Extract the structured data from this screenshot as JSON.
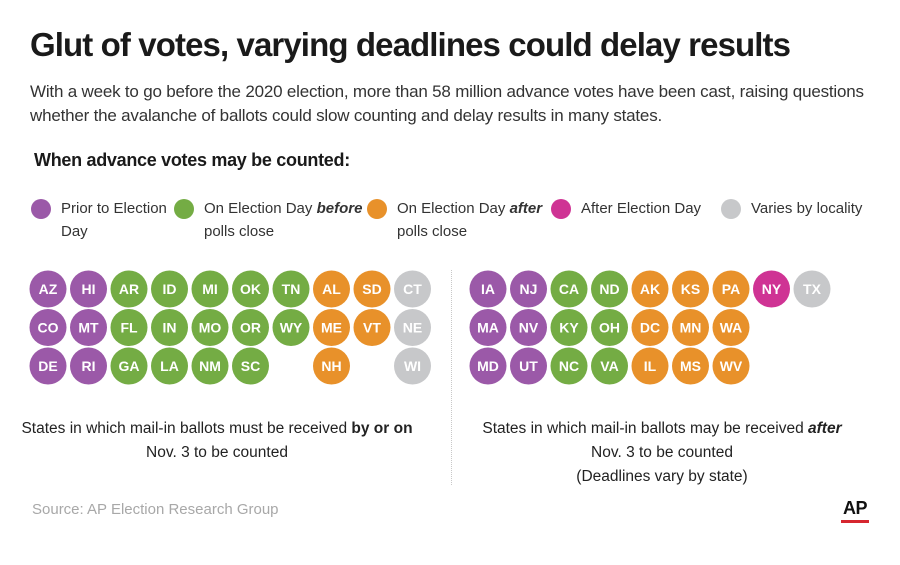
{
  "header": {
    "title": "Glut of votes, varying deadlines could delay results",
    "subtitle": "With a week to go before the 2020 election, more than 58 million advance votes have been cast, raising questions whether the avalanche of ballots could slow counting and delay results in many states.",
    "subhead": "When advance votes may be counted:"
  },
  "legend": [
    {
      "key": "prior",
      "line1": "Prior to Election",
      "line2": "Day",
      "emph": "",
      "color": "#9b59a8"
    },
    {
      "key": "before",
      "line1": "On Election Day ",
      "emph": "before",
      "line2": "polls close",
      "color": "#74ac44"
    },
    {
      "key": "after",
      "line1": "On Election Day ",
      "emph": "after",
      "line2": "polls close",
      "color": "#e8912a"
    },
    {
      "key": "post",
      "line1": "After Election Day",
      "emph": "",
      "line2": "",
      "color": "#cf3394"
    },
    {
      "key": "varies",
      "line1": "Varies by locality",
      "emph": "",
      "line2": "",
      "color": "#c7c8ca"
    }
  ],
  "chart_data": {
    "type": "table",
    "title": "When advance votes may be counted:",
    "categories": [
      "Prior to Election Day",
      "On Election Day before polls close",
      "On Election Day after polls close",
      "After Election Day",
      "Varies by locality"
    ],
    "groups": [
      {
        "name": "received_by_or_on",
        "caption_pre": "States in which mail-in ballots must be received ",
        "caption_emph": "by or on",
        "caption_line2": "Nov. 3 to be counted",
        "caption_line3": "",
        "rows": [
          [
            {
              "s": "AZ",
              "c": "prior"
            },
            {
              "s": "HI",
              "c": "prior"
            },
            {
              "s": "AR",
              "c": "before"
            },
            {
              "s": "ID",
              "c": "before"
            },
            {
              "s": "MI",
              "c": "before"
            },
            {
              "s": "OK",
              "c": "before"
            },
            {
              "s": "TN",
              "c": "before"
            },
            {
              "s": "AL",
              "c": "after"
            },
            {
              "s": "SD",
              "c": "after"
            },
            {
              "s": "CT",
              "c": "varies"
            }
          ],
          [
            {
              "s": "CO",
              "c": "prior"
            },
            {
              "s": "MT",
              "c": "prior"
            },
            {
              "s": "FL",
              "c": "before"
            },
            {
              "s": "IN",
              "c": "before"
            },
            {
              "s": "MO",
              "c": "before"
            },
            {
              "s": "OR",
              "c": "before"
            },
            {
              "s": "WY",
              "c": "before"
            },
            {
              "s": "ME",
              "c": "after"
            },
            {
              "s": "VT",
              "c": "after"
            },
            {
              "s": "NE",
              "c": "varies"
            }
          ],
          [
            {
              "s": "DE",
              "c": "prior"
            },
            {
              "s": "RI",
              "c": "prior"
            },
            {
              "s": "GA",
              "c": "before"
            },
            {
              "s": "LA",
              "c": "before"
            },
            {
              "s": "NM",
              "c": "before"
            },
            {
              "s": "SC",
              "c": "before"
            },
            null,
            {
              "s": "NH",
              "c": "after"
            },
            null,
            {
              "s": "WI",
              "c": "varies"
            }
          ]
        ]
      },
      {
        "name": "received_after",
        "caption_pre": "States in which mail-in ballots may be received ",
        "caption_emph": "after",
        "caption_line2": "Nov. 3 to be counted",
        "caption_line3": "(Deadlines vary by state)",
        "rows": [
          [
            {
              "s": "IA",
              "c": "prior"
            },
            {
              "s": "NJ",
              "c": "prior"
            },
            {
              "s": "CA",
              "c": "before"
            },
            {
              "s": "ND",
              "c": "before"
            },
            {
              "s": "AK",
              "c": "after"
            },
            {
              "s": "KS",
              "c": "after"
            },
            {
              "s": "PA",
              "c": "after"
            },
            {
              "s": "NY",
              "c": "post"
            },
            {
              "s": "TX",
              "c": "varies"
            }
          ],
          [
            {
              "s": "MA",
              "c": "prior"
            },
            {
              "s": "NV",
              "c": "prior"
            },
            {
              "s": "KY",
              "c": "before"
            },
            {
              "s": "OH",
              "c": "before"
            },
            {
              "s": "DC",
              "c": "after"
            },
            {
              "s": "MN",
              "c": "after"
            },
            {
              "s": "WA",
              "c": "after"
            }
          ],
          [
            {
              "s": "MD",
              "c": "prior"
            },
            {
              "s": "UT",
              "c": "prior"
            },
            {
              "s": "NC",
              "c": "before"
            },
            {
              "s": "VA",
              "c": "before"
            },
            {
              "s": "IL",
              "c": "after"
            },
            {
              "s": "MS",
              "c": "after"
            },
            {
              "s": "WV",
              "c": "after"
            }
          ]
        ]
      }
    ]
  },
  "footer": {
    "source": "Source: AP Election Research Group",
    "logo": "AP"
  }
}
